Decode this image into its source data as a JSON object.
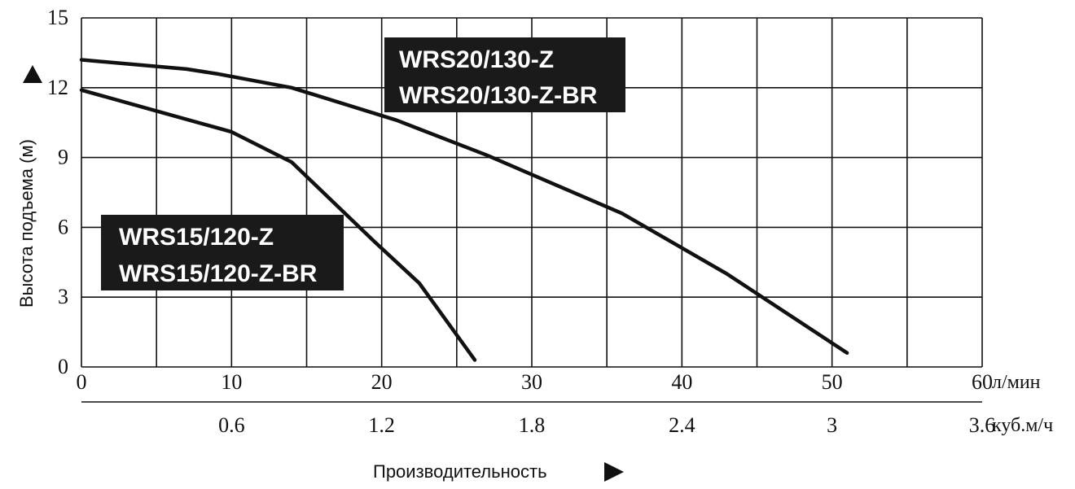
{
  "chart_data": {
    "type": "line",
    "ylabel": "Высота подъема (м)",
    "xlabel": "Производительность",
    "x_unit_primary": "л/мин",
    "x_unit_secondary": "куб.м/ч",
    "xlim": [
      0,
      60
    ],
    "ylim": [
      0,
      15
    ],
    "x_ticks": [
      "0",
      "10",
      "20",
      "30",
      "40",
      "50",
      "60"
    ],
    "x_ticks_secondary": [
      "0.6",
      "1.2",
      "1.8",
      "2.4",
      "3",
      "3.6"
    ],
    "y_ticks": [
      "0",
      "3",
      "6",
      "9",
      "12",
      "15"
    ],
    "grid": true,
    "series": [
      {
        "name": "WRS20/130-Z / WRS20/130-Z-BR",
        "label_lines": [
          "WRS20/130-Z",
          "WRS20/130-Z-BR"
        ],
        "x": [
          0,
          7,
          9,
          14,
          21,
          27,
          36,
          43,
          51
        ],
        "y": [
          13.2,
          12.8,
          12.6,
          12.0,
          10.6,
          9.1,
          6.6,
          4.0,
          0.6
        ]
      },
      {
        "name": "WRS15/120-Z / WRS15/120-Z-BR",
        "label_lines": [
          "WRS15/120-Z",
          "WRS15/120-Z-BR"
        ],
        "x": [
          0,
          5,
          10,
          14,
          19.5,
          22.5,
          26.2
        ],
        "y": [
          11.9,
          11.0,
          10.1,
          8.8,
          5.4,
          3.6,
          0.3
        ]
      }
    ]
  }
}
